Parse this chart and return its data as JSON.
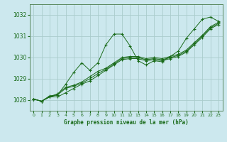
{
  "title": "Graphe pression niveau de la mer (hPa)",
  "plot_bg_color": "#cce8ee",
  "fig_bg_color": "#cce8ee",
  "grid_color": "#aacccc",
  "line_color": "#1a6b1a",
  "xlim": [
    -0.5,
    23.5
  ],
  "ylim": [
    1027.5,
    1032.5
  ],
  "yticks": [
    1028,
    1029,
    1030,
    1031,
    1032
  ],
  "xticks": [
    0,
    1,
    2,
    3,
    4,
    5,
    6,
    7,
    8,
    9,
    10,
    11,
    12,
    13,
    14,
    15,
    16,
    17,
    18,
    19,
    20,
    21,
    22,
    23
  ],
  "series": [
    [
      1028.05,
      1027.95,
      1028.2,
      1028.25,
      1028.75,
      1029.3,
      1029.75,
      1029.4,
      1029.75,
      1030.6,
      1031.1,
      1031.1,
      1030.55,
      1029.85,
      1029.65,
      1029.85,
      1029.8,
      1030.05,
      1030.3,
      1030.9,
      1031.35,
      1031.8,
      1031.9,
      1031.7
    ],
    [
      1028.05,
      1027.95,
      1028.15,
      1028.3,
      1028.6,
      1028.7,
      1028.85,
      1029.1,
      1029.35,
      1029.5,
      1029.75,
      1030.0,
      1030.05,
      1030.05,
      1029.95,
      1030.0,
      1029.95,
      1030.05,
      1030.15,
      1030.35,
      1030.7,
      1031.05,
      1031.45,
      1031.65
    ],
    [
      1028.05,
      1027.95,
      1028.15,
      1028.25,
      1028.55,
      1028.65,
      1028.8,
      1029.0,
      1029.25,
      1029.45,
      1029.7,
      1029.95,
      1030.0,
      1030.0,
      1029.9,
      1029.95,
      1029.9,
      1030.0,
      1030.1,
      1030.3,
      1030.65,
      1031.0,
      1031.4,
      1031.6
    ],
    [
      1028.05,
      1027.95,
      1028.15,
      1028.15,
      1028.35,
      1028.55,
      1028.75,
      1028.9,
      1029.15,
      1029.4,
      1029.65,
      1029.9,
      1029.95,
      1029.95,
      1029.85,
      1029.9,
      1029.85,
      1029.95,
      1030.05,
      1030.25,
      1030.6,
      1030.95,
      1031.35,
      1031.55
    ]
  ]
}
